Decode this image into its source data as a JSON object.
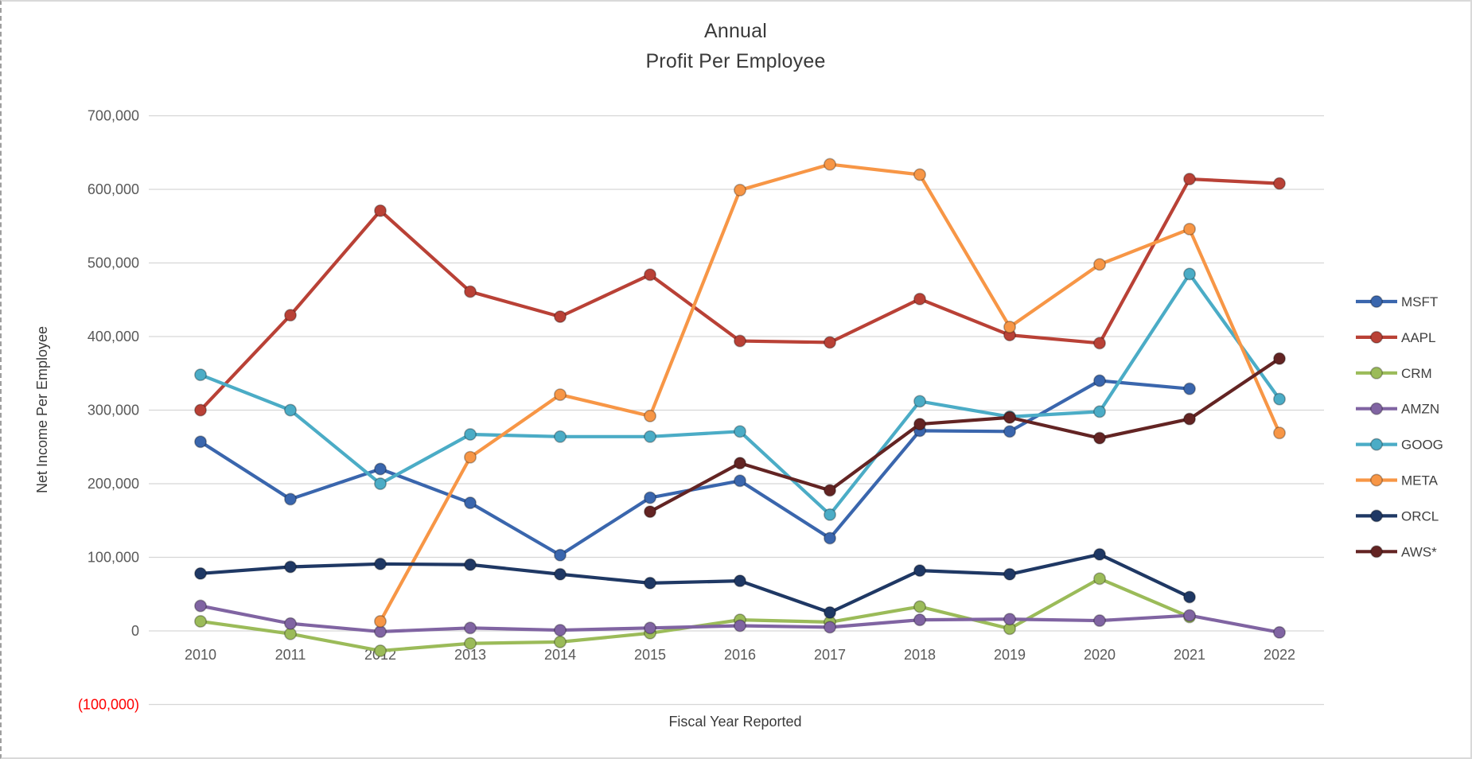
{
  "chart_data": {
    "type": "line",
    "title_lines": [
      "Annual",
      "Profit Per Employee"
    ],
    "xlabel": "Fiscal Year Reported",
    "ylabel": "Net Income Per Employee",
    "categories": [
      "2010",
      "2011",
      "2012",
      "2013",
      "2014",
      "2015",
      "2016",
      "2017",
      "2018",
      "2019",
      "2020",
      "2021",
      "2022"
    ],
    "y_ticks": [
      {
        "label": "700,000",
        "value": 700000,
        "color": "#595959"
      },
      {
        "label": "600,000",
        "value": 600000,
        "color": "#595959"
      },
      {
        "label": "500,000",
        "value": 500000,
        "color": "#595959"
      },
      {
        "label": "400,000",
        "value": 400000,
        "color": "#595959"
      },
      {
        "label": "300,000",
        "value": 300000,
        "color": "#595959"
      },
      {
        "label": "200,000",
        "value": 200000,
        "color": "#595959"
      },
      {
        "label": "100,000",
        "value": 100000,
        "color": "#595959"
      },
      {
        "label": "0",
        "value": 0,
        "color": "#595959"
      },
      {
        "label": "(100,000)",
        "value": -100000,
        "color": "#ff0000"
      }
    ],
    "ylim": [
      -100000,
      700000
    ],
    "grid": true,
    "legend_position": "right",
    "series": [
      {
        "name": "MSFT",
        "color": "#3a66ad",
        "values": [
          257000,
          179000,
          220000,
          174000,
          103000,
          181000,
          204000,
          126000,
          272000,
          271000,
          340000,
          329000,
          null
        ]
      },
      {
        "name": "AAPL",
        "color": "#b94136",
        "values": [
          300000,
          429000,
          571000,
          461000,
          427000,
          484000,
          394000,
          392000,
          451000,
          402000,
          391000,
          614000,
          608000
        ]
      },
      {
        "name": "CRM",
        "color": "#9bbb59",
        "values": [
          13000,
          -4000,
          -27000,
          -17000,
          -15000,
          -3000,
          15000,
          12000,
          33000,
          3000,
          71000,
          19000,
          null
        ]
      },
      {
        "name": "AMZN",
        "color": "#8064a2",
        "values": [
          34000,
          10000,
          -1000,
          4000,
          1000,
          4000,
          7000,
          5000,
          15000,
          16000,
          14000,
          21000,
          -2000
        ]
      },
      {
        "name": "GOOG",
        "color": "#4bacc6",
        "values": [
          348000,
          300000,
          200000,
          267000,
          264000,
          264000,
          271000,
          158000,
          312000,
          291000,
          298000,
          485000,
          315000
        ]
      },
      {
        "name": "META",
        "color": "#f79646",
        "values": [
          null,
          null,
          13000,
          236000,
          321000,
          292000,
          599000,
          634000,
          620000,
          413000,
          498000,
          546000,
          269000
        ]
      },
      {
        "name": "ORCL",
        "color": "#1f3864",
        "values": [
          78000,
          87000,
          91000,
          90000,
          77000,
          65000,
          68000,
          25000,
          82000,
          77000,
          104000,
          46000,
          null
        ]
      },
      {
        "name": "AWS*",
        "color": "#632423",
        "values": [
          null,
          null,
          null,
          null,
          null,
          162000,
          228000,
          191000,
          281000,
          290000,
          262000,
          288000,
          370000
        ]
      }
    ]
  }
}
